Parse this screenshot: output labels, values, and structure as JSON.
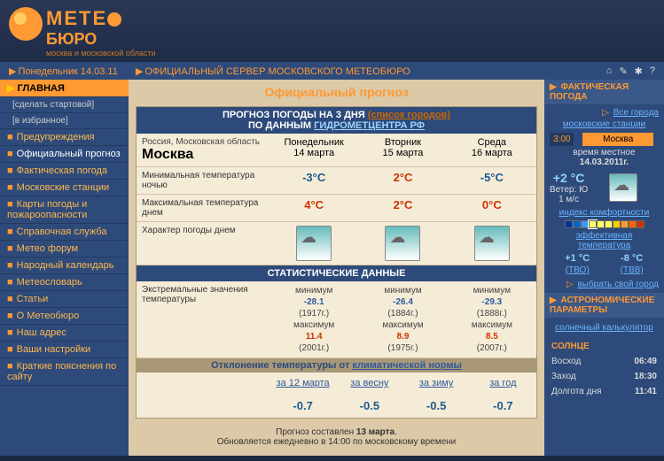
{
  "logo": {
    "meteo": "METE",
    "buro": "БЮРО",
    "subtitle": "москва и московской области"
  },
  "topbar": {
    "date": "Понедельник 14.03.11",
    "server": "ОФИЦИАЛЬНЫЙ СЕРВЕР МОСКОВСКОГО МЕТЕОБЮРО"
  },
  "nav": {
    "main": "ГЛАВНАЯ",
    "items": [
      {
        "label": "[сделать стартовой]",
        "sub": true
      },
      {
        "label": "[в избранное]",
        "sub": true
      },
      {
        "label": "Предупреждения"
      },
      {
        "label": "Официальный прогноз",
        "selected": true
      },
      {
        "label": "Фактическая погода"
      },
      {
        "label": "Московские станции"
      },
      {
        "label": "Карты погоды и пожароопасности"
      },
      {
        "label": "Справочная служба"
      },
      {
        "label": "Метео форум"
      },
      {
        "label": "Народный календарь"
      },
      {
        "label": "Метеословарь"
      },
      {
        "label": "Статьи"
      },
      {
        "label": "О Метеобюро"
      },
      {
        "label": "Наш адрес"
      },
      {
        "label": "Ваши настройки"
      },
      {
        "label": "Краткие пояснения по сайту"
      }
    ]
  },
  "page_title": "Официальный прогноз",
  "forecast": {
    "header": "ПРОГНОЗ ПОГОДЫ НА 3 ДНЯ",
    "cities_link": "(список городов)",
    "sub": "ПО ДАННЫМ",
    "source": "ГИДРОМЕТЦЕНТРА РФ",
    "region": "Россия, Московская область",
    "city": "Москва",
    "days": [
      {
        "name": "Понедельник",
        "date": "14 марта"
      },
      {
        "name": "Вторник",
        "date": "15 марта"
      },
      {
        "name": "Среда",
        "date": "16 марта"
      }
    ],
    "rows": {
      "min_label": "Минимальная температура ночью",
      "min_vals": [
        "-3°C",
        "2°C",
        "-5°C"
      ],
      "max_label": "Максимальная температура днем",
      "max_vals": [
        "4°C",
        "2°C",
        "0°C"
      ],
      "char_label": "Характер погоды днем"
    }
  },
  "stats": {
    "header": "СТАТИСТИЧЕСКИЕ ДАННЫЕ",
    "label": "Экстремальные значения температуры",
    "cols": [
      {
        "min_l": "минимум",
        "min": "-28.1",
        "min_y": "(1917г.)",
        "max_l": "максимум",
        "max": "11.4",
        "max_y": "(2001г.)"
      },
      {
        "min_l": "минимум",
        "min": "-26.4",
        "min_y": "(1884г.)",
        "max_l": "максимум",
        "max": "8.9",
        "max_y": "(1975г.)"
      },
      {
        "min_l": "минимум",
        "min": "-29.3",
        "min_y": "(1888г.)",
        "max_l": "максимум",
        "max": "8.5",
        "max_y": "(2007г.)"
      }
    ]
  },
  "deviation": {
    "header1": "Отклонение температуры от",
    "header_link": "климатической нормы",
    "labels": [
      "за 12 марта",
      "за весну",
      "за зиму",
      "за год"
    ],
    "values": [
      "-0.7",
      "-0.5",
      "-0.5",
      "-0.7"
    ]
  },
  "footer": {
    "l1": "Прогноз составлен",
    "date": "13 марта",
    "l2": "Обновляется ежедневно в 14:00 по московскому времени"
  },
  "right": {
    "fact_title": "ФАКТИЧЕСКАЯ ПОГОДА",
    "all_cities": "Все города",
    "stations": "московские станции",
    "time_label": "3:00",
    "city": "Москва",
    "local_time": "время местное",
    "cur_date": "14.03.2011г.",
    "temp": "+2 °C",
    "wind_l": "Ветер:",
    "wind_d": "Ю",
    "wind_s": "1 м/с",
    "comfort": "индекс комфортности",
    "eff_temp": "эффективная температура",
    "eff1": "+1 °C",
    "eff1_l": "(ТВО)",
    "eff2": "-8 °C",
    "eff2_l": "(ТВВ)",
    "choose": "выбрать свой город",
    "astro_title": "АСТРОНОМИЧЕСКИЕ ПАРАМЕТРЫ",
    "calc": "солнечный калькулятор",
    "sun_title": "СОЛНЦЕ",
    "sunrise_l": "Восход",
    "sunrise": "06:49",
    "sunset_l": "Заход",
    "sunset": "18:30",
    "daylen_l": "Долгота дня",
    "daylen": "11:41"
  },
  "comfort_colors": [
    "#003399",
    "#0066cc",
    "#3399ff",
    "#ffff66",
    "#ffff66",
    "#ffff66",
    "#ffcc00",
    "#ff9933",
    "#ff6600",
    "#cc3300"
  ]
}
